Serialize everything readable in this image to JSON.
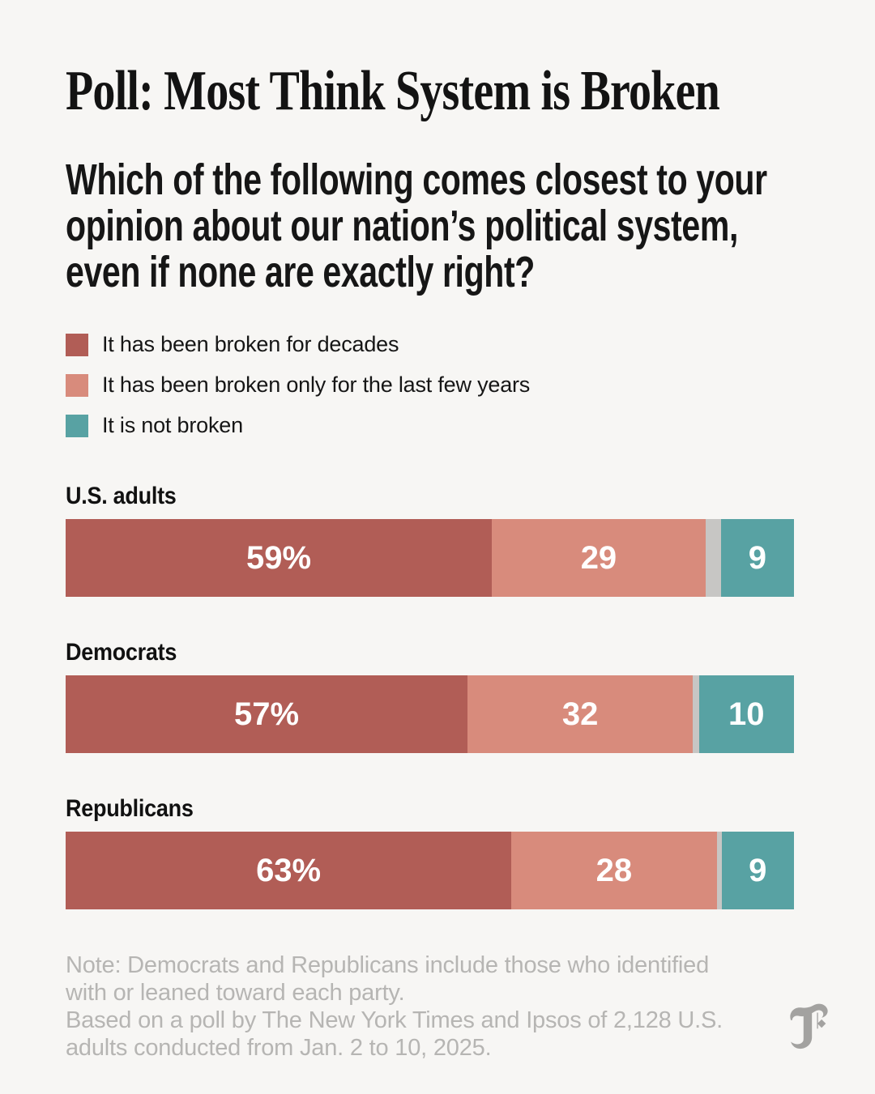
{
  "header": {
    "title": "Poll: Most Think System is Broken"
  },
  "question": {
    "text": "Which of the following comes closest to your opinion about our nation’s political system, even if none are exactly right?",
    "lines": [
      "Which of the following comes closest to your",
      "opinion about our nation’s political system,",
      "even if none are exactly right?"
    ]
  },
  "legend": {
    "items": [
      {
        "key": "broken-decades",
        "label": "It has been broken for decades",
        "color": "#b15d56"
      },
      {
        "key": "broken-few-years",
        "label": "It has been broken only for the last few years",
        "color": "#d88b7c"
      },
      {
        "key": "not-broken",
        "label": "It is not broken",
        "color": "#58a2a3"
      }
    ]
  },
  "chart_data": {
    "type": "bar",
    "stacked": true,
    "orientation": "horizontal",
    "unit": "percent",
    "xlim": [
      0,
      100
    ],
    "grid": false,
    "legend_position": "top",
    "categories": [
      "U.S. adults",
      "Democrats",
      "Republicans"
    ],
    "series": [
      {
        "key": "broken-decades",
        "name": "It has been broken for decades",
        "color": "#b15d56",
        "values": [
          59,
          57,
          63
        ]
      },
      {
        "key": "broken-few-years",
        "name": "It has been broken only for the last few years",
        "color": "#d88b7c",
        "values": [
          29,
          32,
          28
        ]
      },
      {
        "key": "unlabeled-remainder",
        "name": "Unlabeled remainder",
        "color": "#c7c6c4",
        "values": [
          2.5,
          1,
          0.8
        ]
      },
      {
        "key": "not-broken",
        "name": "It is not broken",
        "color": "#58a2a3",
        "values": [
          9,
          10,
          9
        ]
      }
    ],
    "value_labels": [
      [
        "59%",
        "29",
        "",
        "9"
      ],
      [
        "57%",
        "32",
        "",
        "10"
      ],
      [
        "63%",
        "28",
        "",
        "9"
      ]
    ]
  },
  "note": {
    "lines": [
      "Note: Democrats and Republicans include those who identified",
      "with or leaned toward each party.",
      "Based on a poll by The New York Times and Ipsos of 2,128 U.S.",
      "adults conducted from Jan. 2 to 10, 2025."
    ]
  },
  "branding": {
    "logo_icon": "nyt-t-logo",
    "logo_color": "#a3a2a0"
  },
  "colors": {
    "background": "#f7f6f4",
    "text": "#141414",
    "note_text": "#b6b5b3",
    "bar_value_text": "#ffffff"
  }
}
